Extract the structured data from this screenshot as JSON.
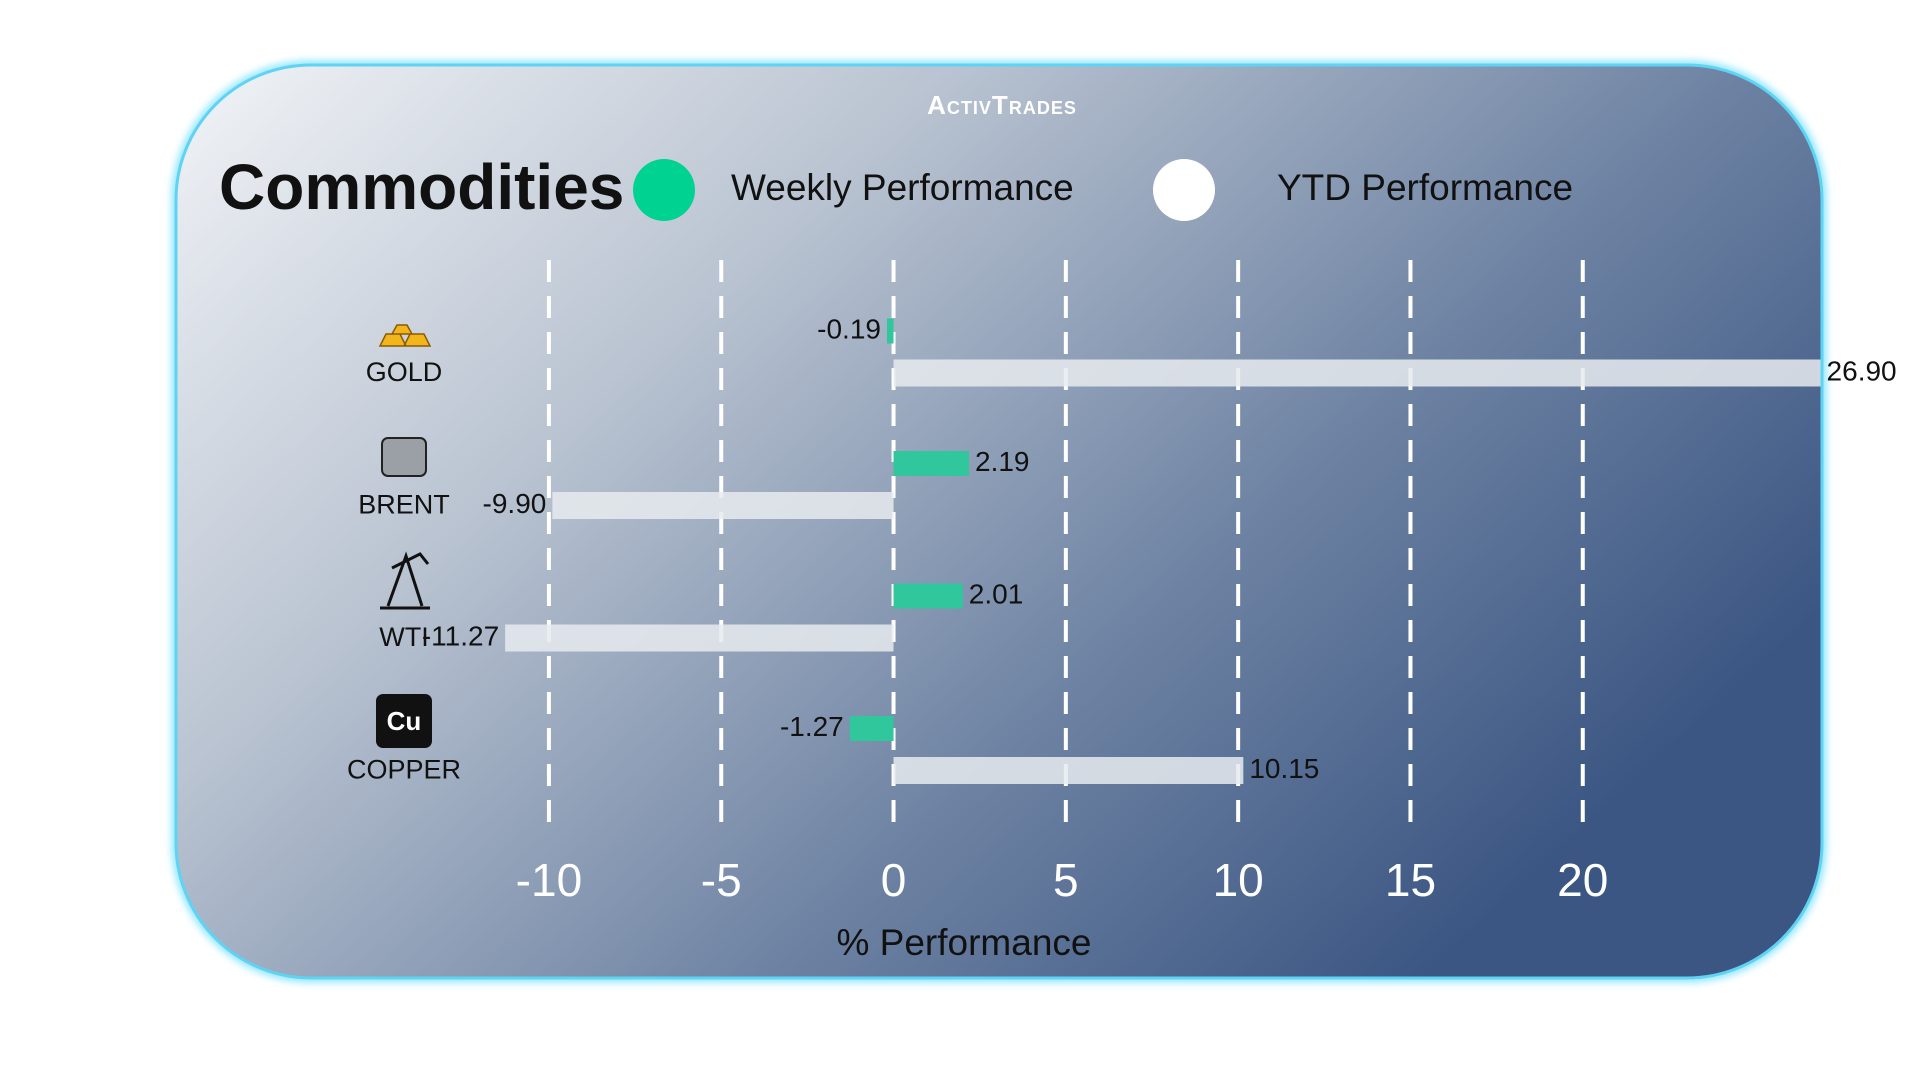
{
  "chart_data": {
    "type": "bar",
    "orientation": "horizontal",
    "brand": "ActivTrades",
    "title": "Commodities",
    "categories": [
      "GOLD",
      "BRENT",
      "WTI",
      "COPPER"
    ],
    "series": [
      {
        "name": "Weekly Performance",
        "color": "#2fc79b",
        "values": [
          -0.19,
          2.19,
          2.01,
          -1.27
        ],
        "value_labels": [
          "-0.19",
          "2.19",
          "2.01",
          "-1.27"
        ]
      },
      {
        "name": "YTD Performance",
        "color": "#e8ebef",
        "values": [
          26.9,
          -9.9,
          -11.27,
          10.15
        ],
        "value_labels": [
          "26.90",
          "-9.90",
          "-11.27",
          "10.15"
        ]
      }
    ],
    "xlabel": "% Performance",
    "xlim": [
      -12,
      27
    ],
    "xticks": [
      -10,
      -5,
      0,
      5,
      10,
      15,
      20
    ],
    "grid": true
  }
}
